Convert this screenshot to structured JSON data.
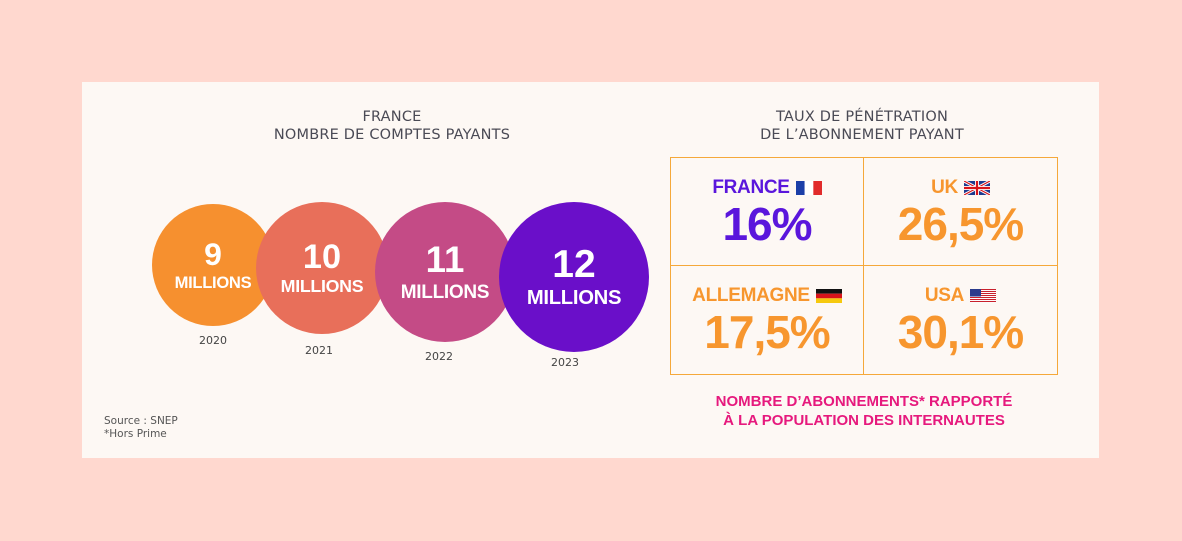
{
  "left_title": [
    "FRANCE",
    "NOMBRE DE COMPTES PAYANTS"
  ],
  "right_title": [
    "TAUX DE PÉNÉTRATION",
    "DE L’ABONNEMENT PAYANT"
  ],
  "chart_data": [
    {
      "type": "bubble",
      "title": "FRANCE NOMBRE DE COMPTES PAYANTS",
      "categories": [
        "2020",
        "2021",
        "2022",
        "2023"
      ],
      "values": [
        9,
        10,
        11,
        12
      ],
      "value_labels": [
        "9",
        "10",
        "11",
        "12"
      ],
      "unit_label": "MILLIONS",
      "colors": [
        "#f6902f",
        "#e86f5a",
        "#c44b86",
        "#6a0fc9"
      ]
    },
    {
      "type": "table",
      "title": "TAUX DE PÉNÉTRATION DE L’ABONNEMENT PAYANT",
      "cells": [
        {
          "country": "FRANCE",
          "value_label": "16%",
          "value": 16,
          "color": "#5a16dc",
          "flag": "france-flag-icon"
        },
        {
          "country": "UK",
          "value_label": "26,5%",
          "value": 26.5,
          "color": "#f7962e",
          "flag": "uk-flag-icon"
        },
        {
          "country": "ALLEMAGNE",
          "value_label": "17,5%",
          "value": 17.5,
          "color": "#f7962e",
          "flag": "germany-flag-icon"
        },
        {
          "country": "USA",
          "value_label": "30,1%",
          "value": 30.1,
          "color": "#f7962e",
          "flag": "usa-flag-icon"
        }
      ]
    }
  ],
  "note": [
    "NOMBRE D’ABONNEMENTS* RAPPORTÉ",
    "À LA POPULATION DES INTERNAUTES"
  ],
  "source": [
    "Source : SNEP",
    "*Hors Prime"
  ],
  "colors": {
    "background": "#ffd8cf",
    "card": "#fdf8f4",
    "accent": "#f5a83a",
    "note": "#e6197d"
  }
}
